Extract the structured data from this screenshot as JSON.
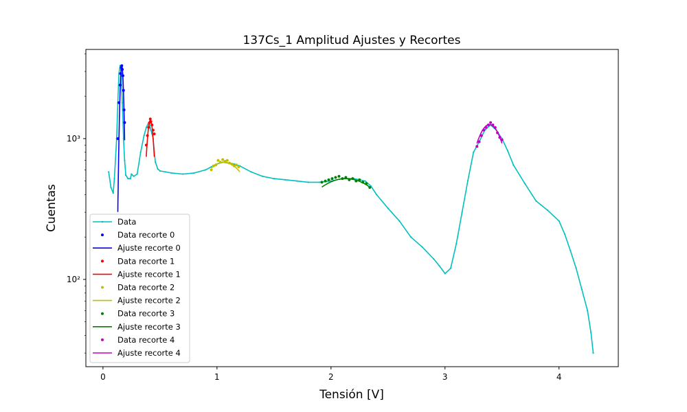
{
  "chart_data": {
    "type": "line",
    "title": "137Cs_1 Amplitud Ajustes y Recortes",
    "xlabel": "Tensión [V]",
    "ylabel": "Cuentas",
    "xlim": [
      -0.15,
      4.52
    ],
    "ylim": [
      24,
      4300
    ],
    "yscale": "log",
    "x_ticks": [
      0,
      1,
      2,
      3,
      4
    ],
    "x_tick_labels": [
      "0",
      "1",
      "2",
      "3",
      "4"
    ],
    "y_ticks": [
      100,
      1000
    ],
    "y_tick_labels": [
      "10²",
      "10³"
    ],
    "grid": false,
    "legend_position": "lower-left",
    "legend_entries": [
      {
        "label": "Data",
        "marker": "line+dot",
        "color": "#00bfbf"
      },
      {
        "label": "Data recorte 0",
        "marker": "dot",
        "color": "#0000ff"
      },
      {
        "label": "Ajuste recorte 0",
        "marker": "line",
        "color": "#0000ff"
      },
      {
        "label": "Data recorte 1",
        "marker": "dot",
        "color": "#ff0000"
      },
      {
        "label": "Ajuste recorte 1",
        "marker": "line",
        "color": "#ff0000"
      },
      {
        "label": "Data recorte 2",
        "marker": "dot",
        "color": "#bfbf00"
      },
      {
        "label": "Ajuste recorte 2",
        "marker": "line",
        "color": "#bfbf00"
      },
      {
        "label": "Data recorte 3",
        "marker": "dot",
        "color": "#008000"
      },
      {
        "label": "Ajuste recorte 3",
        "marker": "line",
        "color": "#008000"
      },
      {
        "label": "Data recorte 4",
        "marker": "dot",
        "color": "#bf00bf"
      },
      {
        "label": "Ajuste recorte 4",
        "marker": "line",
        "color": "#bf00bf"
      }
    ],
    "data_series": {
      "name": "Data",
      "color": "#00bfbf",
      "x": [
        0.05,
        0.07,
        0.09,
        0.1,
        0.12,
        0.13,
        0.14,
        0.15,
        0.16,
        0.17,
        0.18,
        0.19,
        0.2,
        0.22,
        0.24,
        0.25,
        0.27,
        0.3,
        0.33,
        0.36,
        0.38,
        0.4,
        0.41,
        0.42,
        0.43,
        0.44,
        0.45,
        0.46,
        0.48,
        0.5,
        0.55,
        0.6,
        0.7,
        0.8,
        0.9,
        0.95,
        1.0,
        1.05,
        1.1,
        1.15,
        1.2,
        1.3,
        1.4,
        1.5,
        1.6,
        1.7,
        1.8,
        1.9,
        2.0,
        2.1,
        2.2,
        2.3,
        2.35,
        2.4,
        2.5,
        2.6,
        2.7,
        2.8,
        2.9,
        2.95,
        3.0,
        3.05,
        3.1,
        3.15,
        3.2,
        3.25,
        3.3,
        3.35,
        3.4,
        3.45,
        3.5,
        3.55,
        3.6,
        3.7,
        3.8,
        3.9,
        4.0,
        4.05,
        4.1,
        4.15,
        4.2,
        4.25,
        4.28,
        4.3
      ],
      "y": [
        580,
        450,
        410,
        520,
        1000,
        1800,
        2900,
        3300,
        3000,
        1800,
        1000,
        700,
        550,
        520,
        520,
        560,
        540,
        560,
        800,
        1050,
        1200,
        1300,
        1250,
        1150,
        1080,
        1000,
        800,
        680,
        610,
        590,
        580,
        570,
        560,
        570,
        600,
        630,
        660,
        680,
        670,
        660,
        640,
        580,
        540,
        520,
        510,
        500,
        490,
        490,
        500,
        520,
        520,
        500,
        460,
        400,
        320,
        260,
        200,
        170,
        140,
        125,
        110,
        120,
        180,
        300,
        500,
        800,
        950,
        1150,
        1250,
        1150,
        1000,
        820,
        650,
        480,
        360,
        310,
        260,
        210,
        160,
        120,
        85,
        60,
        42,
        30
      ]
    },
    "recortes": [
      {
        "data_label": "Data recorte 0",
        "fit_label": "Ajuste recorte 0",
        "color": "#0000ff",
        "x": [
          0.13,
          0.14,
          0.15,
          0.155,
          0.16,
          0.165,
          0.17,
          0.175,
          0.18,
          0.185,
          0.19
        ],
        "y": [
          1000,
          1800,
          2400,
          2900,
          3200,
          3300,
          3100,
          2800,
          2200,
          1600,
          1300
        ],
        "fit": {
          "amplitude": 3300,
          "center": 0.165,
          "sigma": 0.016,
          "x_range": [
            0.13,
            0.19
          ]
        }
      },
      {
        "data_label": "Data recorte 1",
        "fit_label": "Ajuste recorte 1",
        "color": "#ff0000",
        "x": [
          0.38,
          0.39,
          0.4,
          0.41,
          0.415,
          0.42,
          0.43,
          0.44,
          0.45
        ],
        "y": [
          900,
          1050,
          1200,
          1300,
          1380,
          1320,
          1250,
          1150,
          1080
        ],
        "fit": {
          "amplitude": 1350,
          "center": 0.415,
          "sigma": 0.032,
          "x_range": [
            0.38,
            0.45
          ]
        }
      },
      {
        "data_label": "Data recorte 2",
        "fit_label": "Ajuste recorte 2",
        "color": "#bfbf00",
        "x": [
          0.95,
          0.97,
          0.99,
          1.01,
          1.03,
          1.05,
          1.07,
          1.09,
          1.11,
          1.13,
          1.15,
          1.17,
          1.19
        ],
        "y": [
          600,
          640,
          650,
          700,
          680,
          710,
          690,
          700,
          670,
          660,
          640,
          650,
          630
        ],
        "fit": {
          "amplitude": 680,
          "center": 1.06,
          "sigma": 0.25,
          "x_range": [
            0.95,
            1.2
          ]
        }
      },
      {
        "data_label": "Data recorte 3",
        "fit_label": "Ajuste recorte 3",
        "color": "#008000",
        "x": [
          1.92,
          1.95,
          1.98,
          2.01,
          2.04,
          2.07,
          2.1,
          2.13,
          2.16,
          2.19,
          2.22,
          2.25,
          2.28,
          2.31,
          2.34
        ],
        "y": [
          490,
          500,
          510,
          520,
          530,
          540,
          520,
          530,
          510,
          520,
          500,
          510,
          490,
          480,
          450
        ],
        "fit": {
          "amplitude": 520,
          "center": 2.13,
          "sigma": 0.4,
          "x_range": [
            1.92,
            2.35
          ]
        }
      },
      {
        "data_label": "Data recorte 4",
        "fit_label": "Ajuste recorte 4",
        "color": "#bf00bf",
        "x": [
          3.28,
          3.3,
          3.32,
          3.34,
          3.36,
          3.38,
          3.4,
          3.42,
          3.44,
          3.46,
          3.48,
          3.5
        ],
        "y": [
          880,
          950,
          1050,
          1150,
          1200,
          1250,
          1300,
          1250,
          1200,
          1100,
          1020,
          980
        ],
        "fit": {
          "amplitude": 1260,
          "center": 3.39,
          "sigma": 0.14,
          "x_range": [
            3.28,
            3.5
          ]
        }
      }
    ]
  }
}
